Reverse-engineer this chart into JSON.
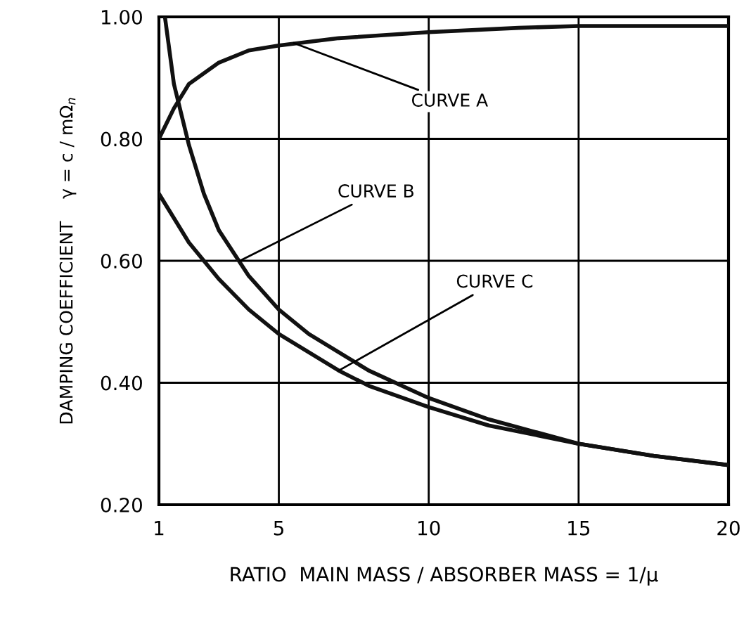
{
  "chart_data": {
    "type": "line",
    "xlabel": "RATIO  MAIN MASS / ABSORBER MASS = 1/μ",
    "ylabel": "DAMPING COEFFICIENT    γ = c / mΩ$_{n}$",
    "series": [
      {
        "color": "#111111",
        "x": [
          1,
          1.5,
          2,
          3,
          4,
          5,
          7,
          10,
          13,
          15,
          20
        ],
        "values": [
          0.8,
          0.85,
          0.89,
          0.925,
          0.945,
          0.953,
          0.965,
          0.975,
          0.982,
          0.985,
          0.985
        ]
      },
      {
        "color": "#111111",
        "x": [
          1.2,
          1.5,
          2,
          2.5,
          3,
          4,
          5,
          6,
          7,
          8,
          10,
          12,
          15,
          17.5,
          20
        ],
        "values": [
          1.0,
          0.89,
          0.79,
          0.71,
          0.65,
          0.575,
          0.52,
          0.48,
          0.45,
          0.42,
          0.375,
          0.34,
          0.3,
          0.28,
          0.265
        ]
      },
      {
        "color": "#111111",
        "x": [
          1,
          1.5,
          2,
          3,
          4,
          5,
          6,
          7,
          8,
          10,
          12,
          15,
          17.5,
          20
        ],
        "values": [
          0.71,
          0.67,
          0.63,
          0.57,
          0.52,
          0.48,
          0.45,
          0.42,
          0.395,
          0.36,
          0.33,
          0.3,
          0.28,
          0.265
        ]
      }
    ],
    "annotations": [
      {
        "text": "CURVE A",
        "x": 5.5,
        "y": 0.957
      },
      {
        "text": "CURVE B",
        "x": 3.7,
        "y": 0.6
      },
      {
        "text": "CURVE C",
        "x": 7.0,
        "y": 0.42
      }
    ],
    "xlim": [
      1,
      20
    ],
    "xticks": [
      1,
      5,
      10,
      15,
      20
    ],
    "ylim": [
      0.2,
      1.0
    ],
    "yticks": [
      {
        "value": 0.2,
        "label": "0.20"
      },
      {
        "value": 0.4,
        "label": "0.40"
      },
      {
        "value": 0.6,
        "label": "0.60"
      },
      {
        "value": 0.8,
        "label": "0.80"
      },
      {
        "value": 1.0,
        "label": "1.00"
      }
    ],
    "grid": true,
    "line_style": "solid",
    "marker": "none"
  }
}
